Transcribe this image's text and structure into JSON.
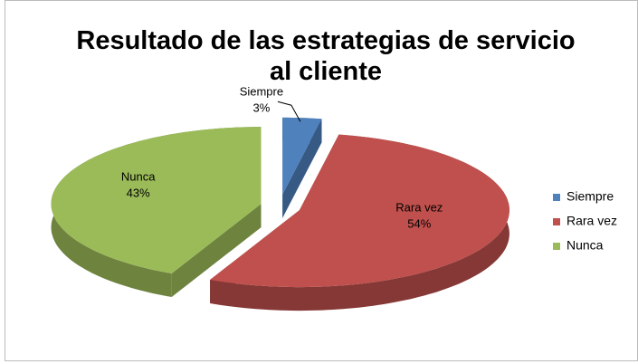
{
  "chart_data": {
    "type": "pie3d",
    "title": "Resultado de las estrategias de servicio al cliente",
    "categories": [
      "Siempre",
      "Rara vez",
      "Nunca"
    ],
    "values": [
      3,
      54,
      43
    ],
    "value_labels": [
      "3%",
      "54%",
      "43%"
    ],
    "colors": [
      "#4f81bd",
      "#c0504d",
      "#9bbb59"
    ],
    "legend": "right"
  }
}
